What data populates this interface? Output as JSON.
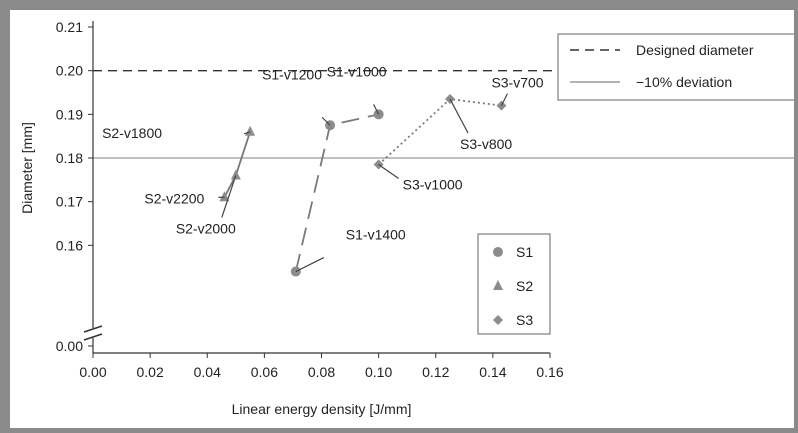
{
  "chart_data": {
    "type": "scatter",
    "xlabel": "Linear energy density [J/mm]",
    "ylabel": "Diameter [mm]",
    "xlim": [
      0,
      0.16
    ],
    "ylim_upper": [
      0.15,
      0.21
    ],
    "ylim_lower": [
      0.0,
      0.0
    ],
    "axis_break": true,
    "x_ticks": [
      "0.00",
      "0.02",
      "0.04",
      "0.06",
      "0.08",
      "0.10",
      "0.12",
      "0.14",
      "0.16"
    ],
    "y_ticks": [
      "0.21",
      "0.20",
      "0.19",
      "0.18",
      "0.17",
      "0.16",
      "0.00"
    ],
    "reference_lines": [
      {
        "name": "Designed diameter",
        "y": 0.2,
        "style": "dashed"
      },
      {
        "name": "−10% deviation",
        "y": 0.18,
        "style": "solid"
      }
    ],
    "series": [
      {
        "name": "S1",
        "marker": "circle",
        "line": "long-dash",
        "points": [
          {
            "label": "S1-v1400",
            "x": 0.071,
            "y": 0.154
          },
          {
            "label": "S1-v1200",
            "x": 0.083,
            "y": 0.1875
          },
          {
            "label": "S1-v1000",
            "x": 0.1,
            "y": 0.19
          }
        ]
      },
      {
        "name": "S2",
        "marker": "triangle",
        "line": "solid",
        "points": [
          {
            "label": "S2-v2200",
            "x": 0.046,
            "y": 0.171
          },
          {
            "label": "S2-v2000",
            "x": 0.05,
            "y": 0.176
          },
          {
            "label": "S2-v1800",
            "x": 0.055,
            "y": 0.186
          }
        ]
      },
      {
        "name": "S3",
        "marker": "diamond",
        "line": "dotted",
        "points": [
          {
            "label": "S3-v1000",
            "x": 0.1,
            "y": 0.1785
          },
          {
            "label": "S3-v800",
            "x": 0.125,
            "y": 0.1935
          },
          {
            "label": "S3-v700",
            "x": 0.143,
            "y": 0.192
          }
        ]
      }
    ],
    "legend_placement": "bottom-right",
    "colors": {
      "marker": "#8c8c8c",
      "line": "#7a7a7a",
      "ref_line": "#9a9a9a"
    }
  }
}
